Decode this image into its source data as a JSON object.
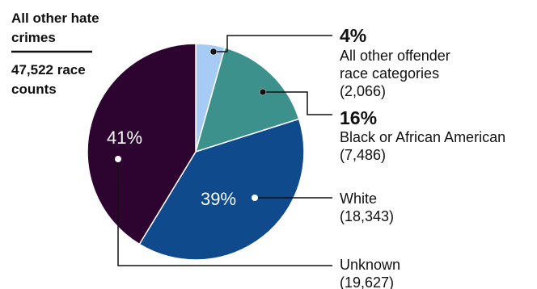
{
  "chart_data": {
    "type": "pie",
    "header": {
      "line1": "All other hate",
      "line2": "crimes",
      "line3": "47,522 race",
      "line4": "counts"
    },
    "slices": [
      {
        "key": "other",
        "percent": 4,
        "percent_label": "4%",
        "label_lines": [
          "All other offender",
          "race categories"
        ],
        "count_label": "(2,066)",
        "value": 2066,
        "color": "#a6cbf5"
      },
      {
        "key": "black",
        "percent": 16,
        "percent_label": "16%",
        "label_lines": [
          "Black or African American"
        ],
        "count_label": "(7,486)",
        "value": 7486,
        "color": "#3c918c"
      },
      {
        "key": "white",
        "percent": 39,
        "percent_label": "39%",
        "label_lines": [
          "White"
        ],
        "count_label": "(18,343)",
        "value": 18343,
        "color": "#0e4a8c"
      },
      {
        "key": "unknown",
        "percent": 41,
        "percent_label": "41%",
        "label_lines": [
          "Unknown"
        ],
        "count_label": "(19,627)",
        "value": 19627,
        "color": "#2d0330"
      }
    ],
    "start": "12 o'clock",
    "direction": "clockwise",
    "legend": "callouts-right"
  }
}
